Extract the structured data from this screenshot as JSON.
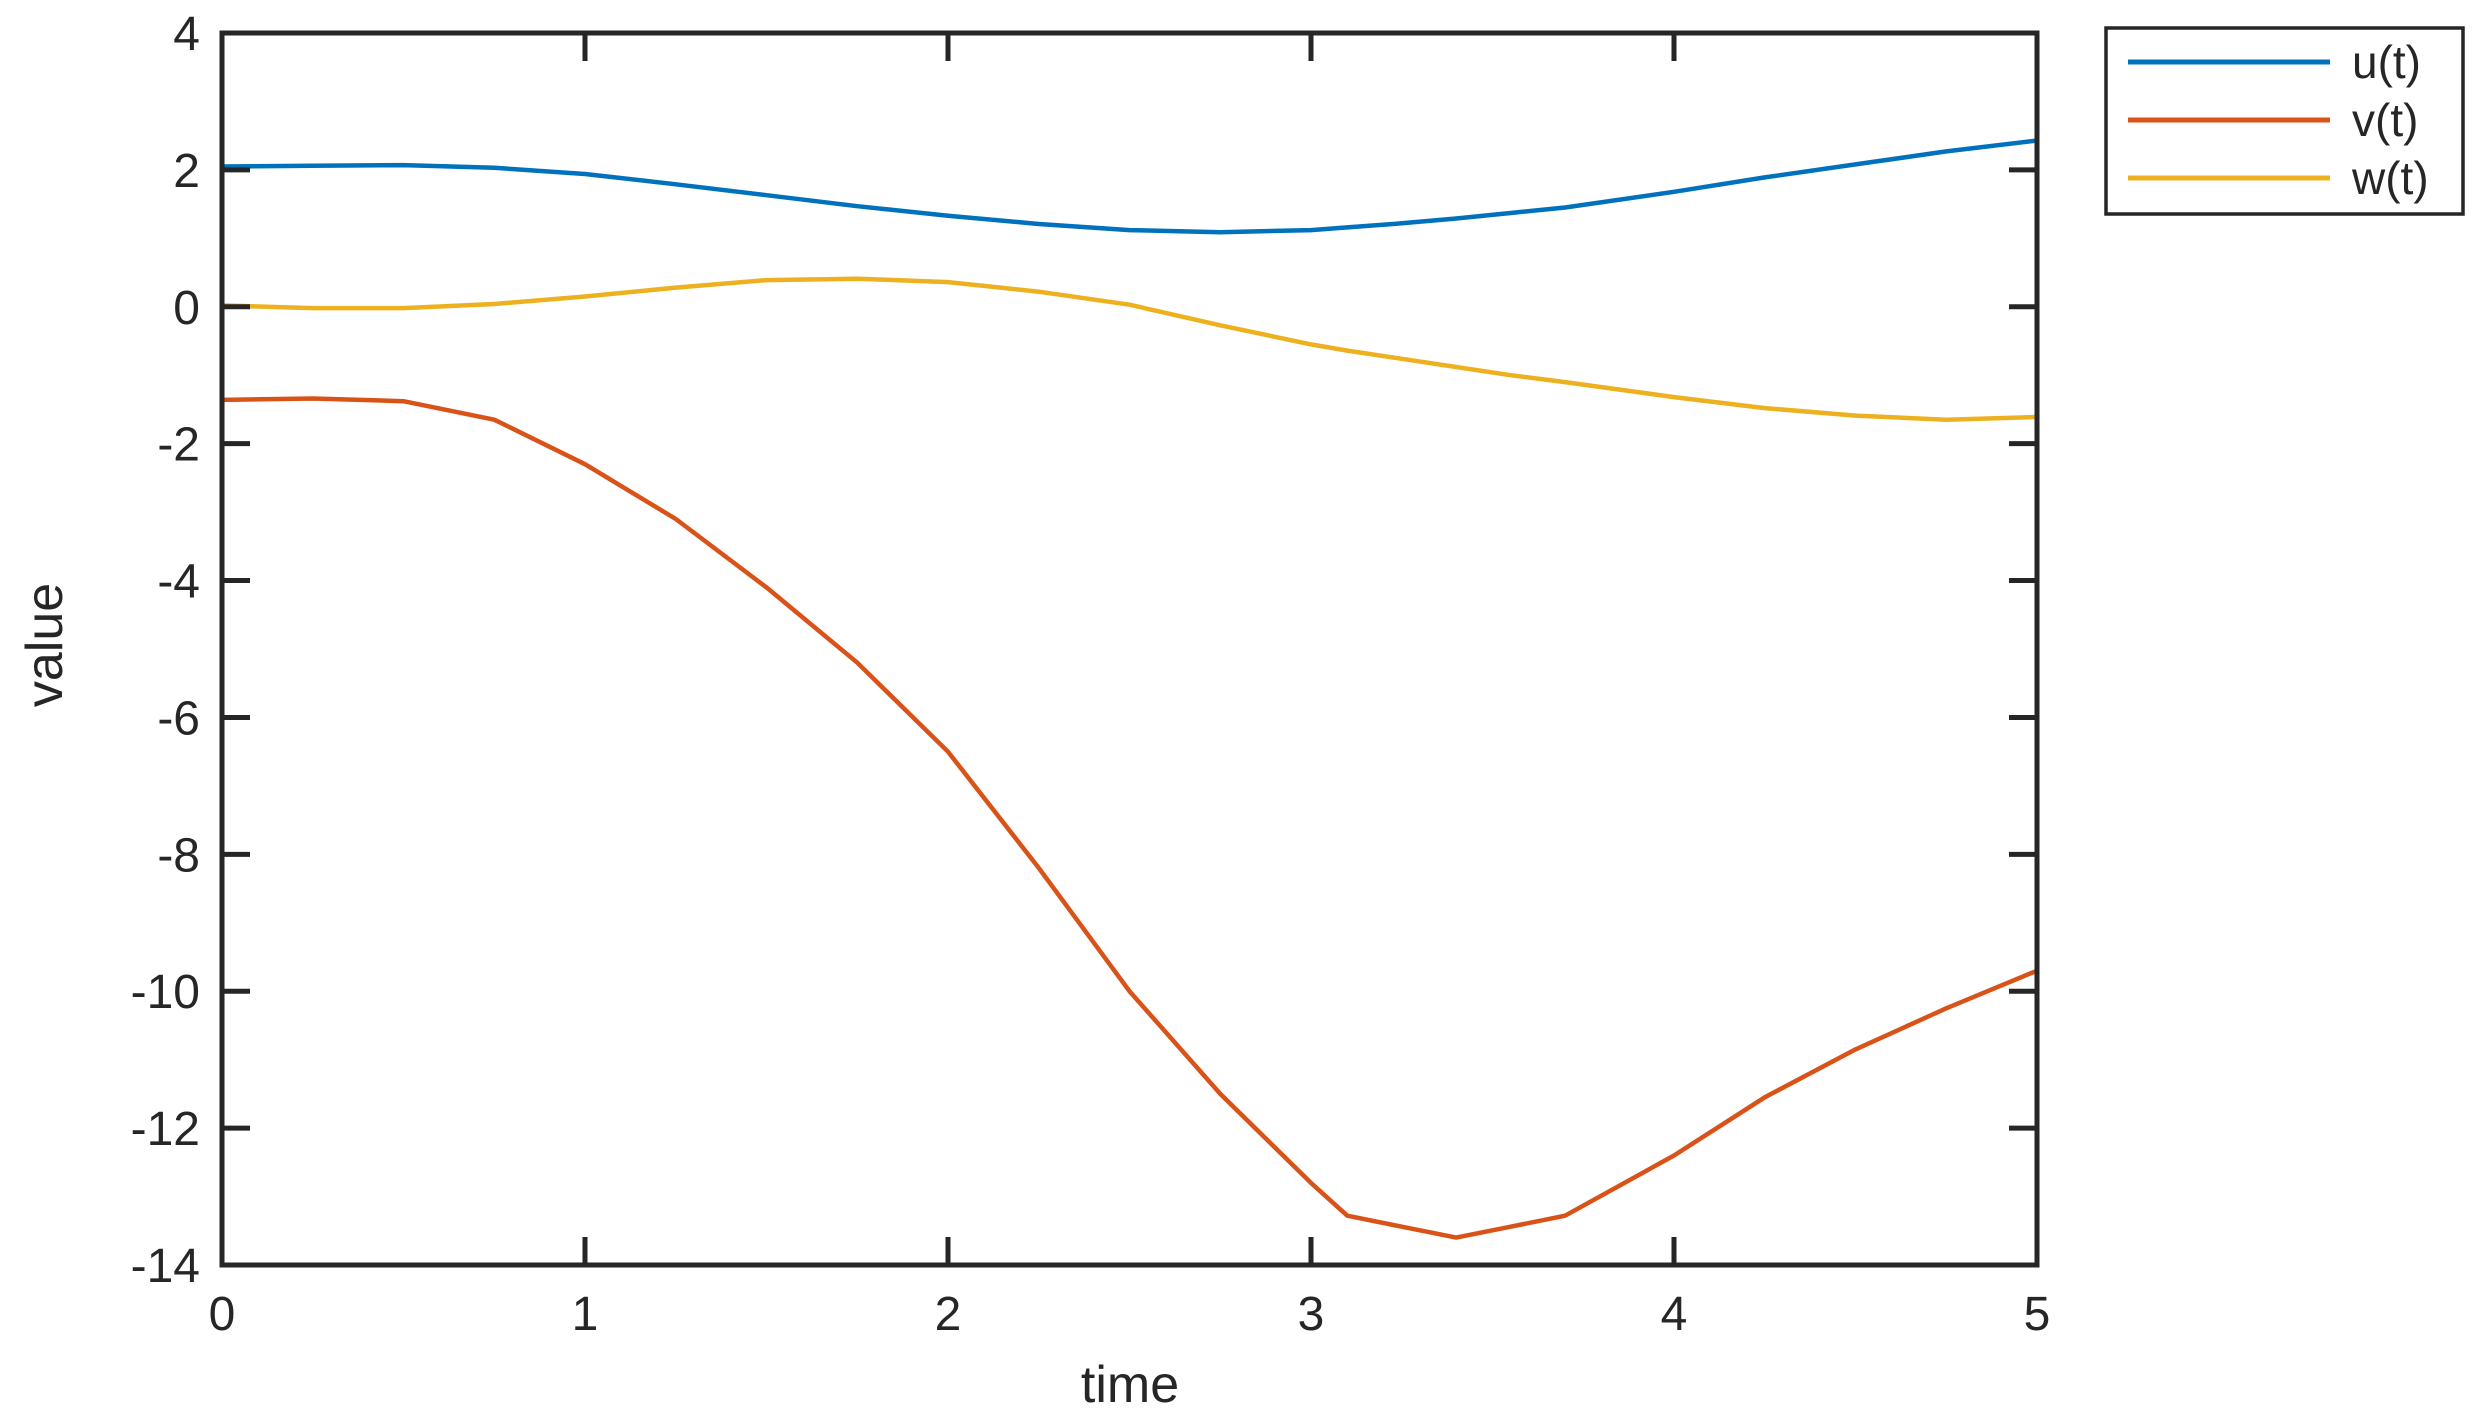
{
  "figure": {
    "background": "#ffffff",
    "axis_color": "#262626"
  },
  "chart_data": {
    "type": "line",
    "title": "",
    "xlabel": "time",
    "ylabel": "value",
    "xlim": [
      0,
      5
    ],
    "ylim": [
      -14,
      4
    ],
    "xticks": [
      0,
      1,
      2,
      3,
      4,
      5
    ],
    "yticks": [
      4,
      2,
      0,
      -2,
      -4,
      -6,
      -8,
      -10,
      -12,
      -14
    ],
    "grid": false,
    "legend_position": "outside-top-right",
    "x": [
      0,
      0.25,
      0.5,
      0.75,
      1,
      1.25,
      1.5,
      1.75,
      2,
      2.25,
      2.5,
      2.75,
      3,
      3.1,
      3.25,
      3.4,
      3.55,
      3.7,
      4,
      4.25,
      4.5,
      4.75,
      5
    ],
    "series": [
      {
        "name": "u(t)",
        "color": "#0072BD",
        "values": [
          2.05,
          2.06,
          2.07,
          2.03,
          1.94,
          1.79,
          1.63,
          1.47,
          1.33,
          1.21,
          1.12,
          1.09,
          1.12,
          1.16,
          1.22,
          1.29,
          1.37,
          1.45,
          1.68,
          1.89,
          2.08,
          2.27,
          2.43
        ]
      },
      {
        "name": "v(t)",
        "color": "#D95319",
        "values": [
          -1.36,
          -1.34,
          -1.38,
          -1.65,
          -2.3,
          -3.1,
          -4.1,
          -5.2,
          -6.5,
          -8.2,
          -10.0,
          -11.5,
          -12.8,
          -13.28,
          -13.44,
          -13.6,
          -13.44,
          -13.28,
          -12.4,
          -11.55,
          -10.85,
          -10.25,
          -9.7
        ]
      },
      {
        "name": "w(t)",
        "color": "#EDB120",
        "values": [
          0.02,
          -0.02,
          -0.02,
          0.04,
          0.15,
          0.28,
          0.39,
          0.41,
          0.36,
          0.22,
          0.03,
          -0.27,
          -0.55,
          -0.64,
          -0.76,
          -0.88,
          -1.0,
          -1.1,
          -1.32,
          -1.48,
          -1.59,
          -1.65,
          -1.61
        ]
      }
    ]
  }
}
